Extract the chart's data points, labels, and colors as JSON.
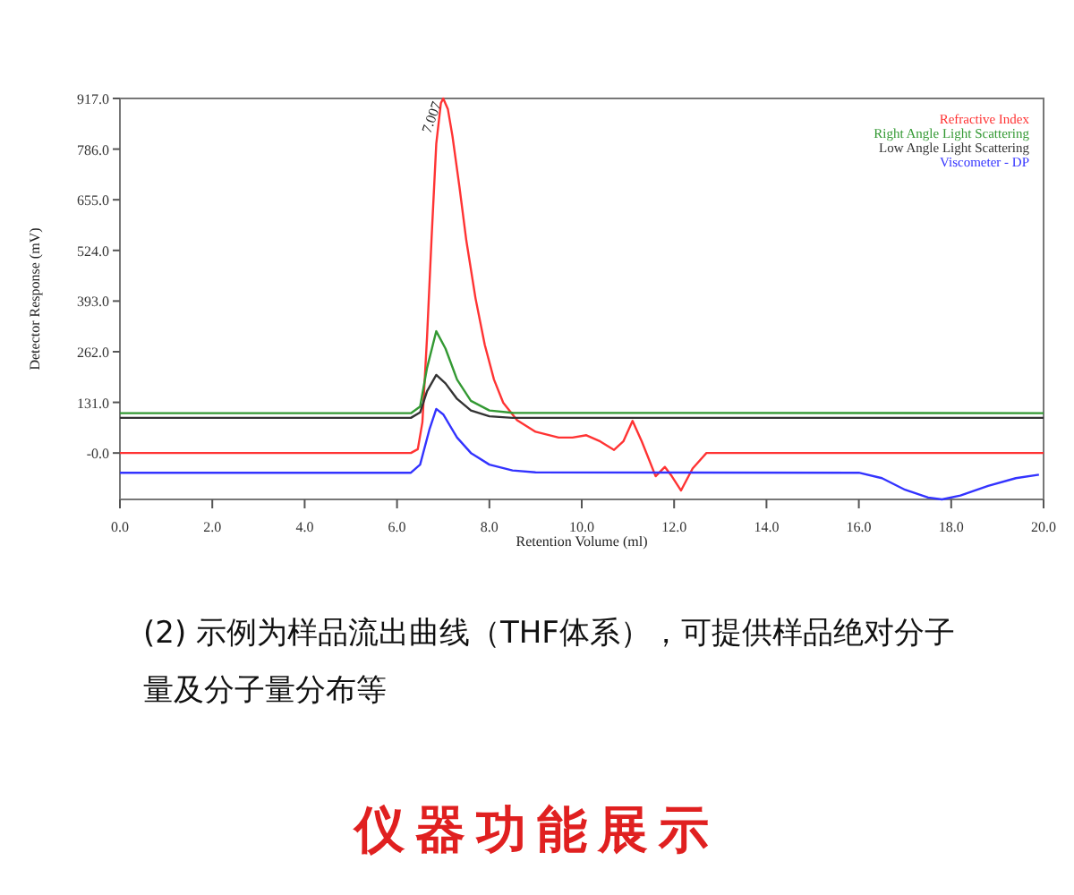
{
  "chart_data": {
    "type": "line",
    "xlabel": "Retention Volume (ml)",
    "ylabel": "Detector Response (mV)",
    "xlim": [
      0,
      20
    ],
    "xticks": [
      {
        "value": 0,
        "label": "0.0"
      },
      {
        "value": 2,
        "label": "2.0"
      },
      {
        "value": 4,
        "label": "4.0"
      },
      {
        "value": 6,
        "label": "6.0"
      },
      {
        "value": 8,
        "label": "8.0"
      },
      {
        "value": 10,
        "label": "10.0"
      },
      {
        "value": 12,
        "label": "12.0"
      },
      {
        "value": 14,
        "label": "14.0"
      },
      {
        "value": 16,
        "label": "16.0"
      },
      {
        "value": 18,
        "label": "18.0"
      },
      {
        "value": 20,
        "label": "20.0"
      }
    ],
    "ylim": [
      -120,
      917
    ],
    "yticks": [
      {
        "value": 0,
        "label": "-0.0"
      },
      {
        "value": 131,
        "label": "131.0"
      },
      {
        "value": 262,
        "label": "262.0"
      },
      {
        "value": 393,
        "label": "393.0"
      },
      {
        "value": 524,
        "label": "524.0"
      },
      {
        "value": 655,
        "label": "655.0"
      },
      {
        "value": 786,
        "label": "786.0"
      },
      {
        "value": 917,
        "label": "917.0"
      }
    ],
    "legend": "top right",
    "grid": false,
    "marker": "none",
    "line_style": "solid",
    "series": [
      {
        "name": "Refractive Index",
        "color": "#ff3333",
        "x": [
          0,
          6.3,
          6.45,
          6.55,
          6.65,
          6.75,
          6.85,
          6.95,
          7.0,
          7.1,
          7.2,
          7.35,
          7.5,
          7.7,
          7.9,
          8.1,
          8.3,
          8.6,
          9.0,
          9.5,
          9.8,
          10.1,
          10.4,
          10.7,
          10.9,
          11.1,
          11.3,
          11.6,
          11.8,
          11.95,
          12.15,
          12.4,
          12.7,
          20
        ],
        "values": [
          0,
          0,
          10,
          80,
          300,
          560,
          800,
          905,
          917,
          890,
          820,
          690,
          550,
          400,
          280,
          190,
          130,
          85,
          55,
          40,
          40,
          46,
          30,
          8,
          30,
          83,
          30,
          -60,
          -36,
          -60,
          -97,
          -40,
          0,
          0
        ]
      },
      {
        "name": "Right Angle Light Scattering",
        "color": "#339933",
        "x": [
          0,
          6.3,
          6.5,
          6.65,
          6.85,
          7.05,
          7.3,
          7.6,
          8.0,
          8.5,
          20
        ],
        "values": [
          103,
          103,
          120,
          220,
          315,
          270,
          190,
          135,
          110,
          104,
          103
        ]
      },
      {
        "name": "Low Angle Light Scattering",
        "color": "#333333",
        "x": [
          0,
          6.3,
          6.5,
          6.65,
          6.85,
          7.05,
          7.3,
          7.6,
          8.0,
          8.5,
          20
        ],
        "values": [
          91,
          91,
          105,
          160,
          202,
          180,
          140,
          110,
          95,
          91,
          91
        ]
      },
      {
        "name": "Viscometer - DP",
        "color": "#3333ff",
        "x": [
          0,
          6.3,
          6.5,
          6.7,
          6.85,
          7.0,
          7.3,
          7.6,
          8.0,
          8.5,
          9.0,
          16,
          16.5,
          17,
          17.5,
          17.8,
          18.2,
          18.8,
          19.4,
          19.9
        ],
        "values": [
          -51,
          -51,
          -30,
          60,
          114,
          100,
          40,
          0,
          -30,
          -45,
          -50,
          -51,
          -65,
          -95,
          -115,
          -120,
          -110,
          -85,
          -65,
          -56
        ]
      }
    ],
    "annotations": [
      {
        "text": "7.007",
        "x": 7.0,
        "y": 917
      },
      "(2) 示例为样品流出曲线（THF体系），可提供样品绝对分子量及分子量分布等",
      "仪器功能展示"
    ]
  }
}
